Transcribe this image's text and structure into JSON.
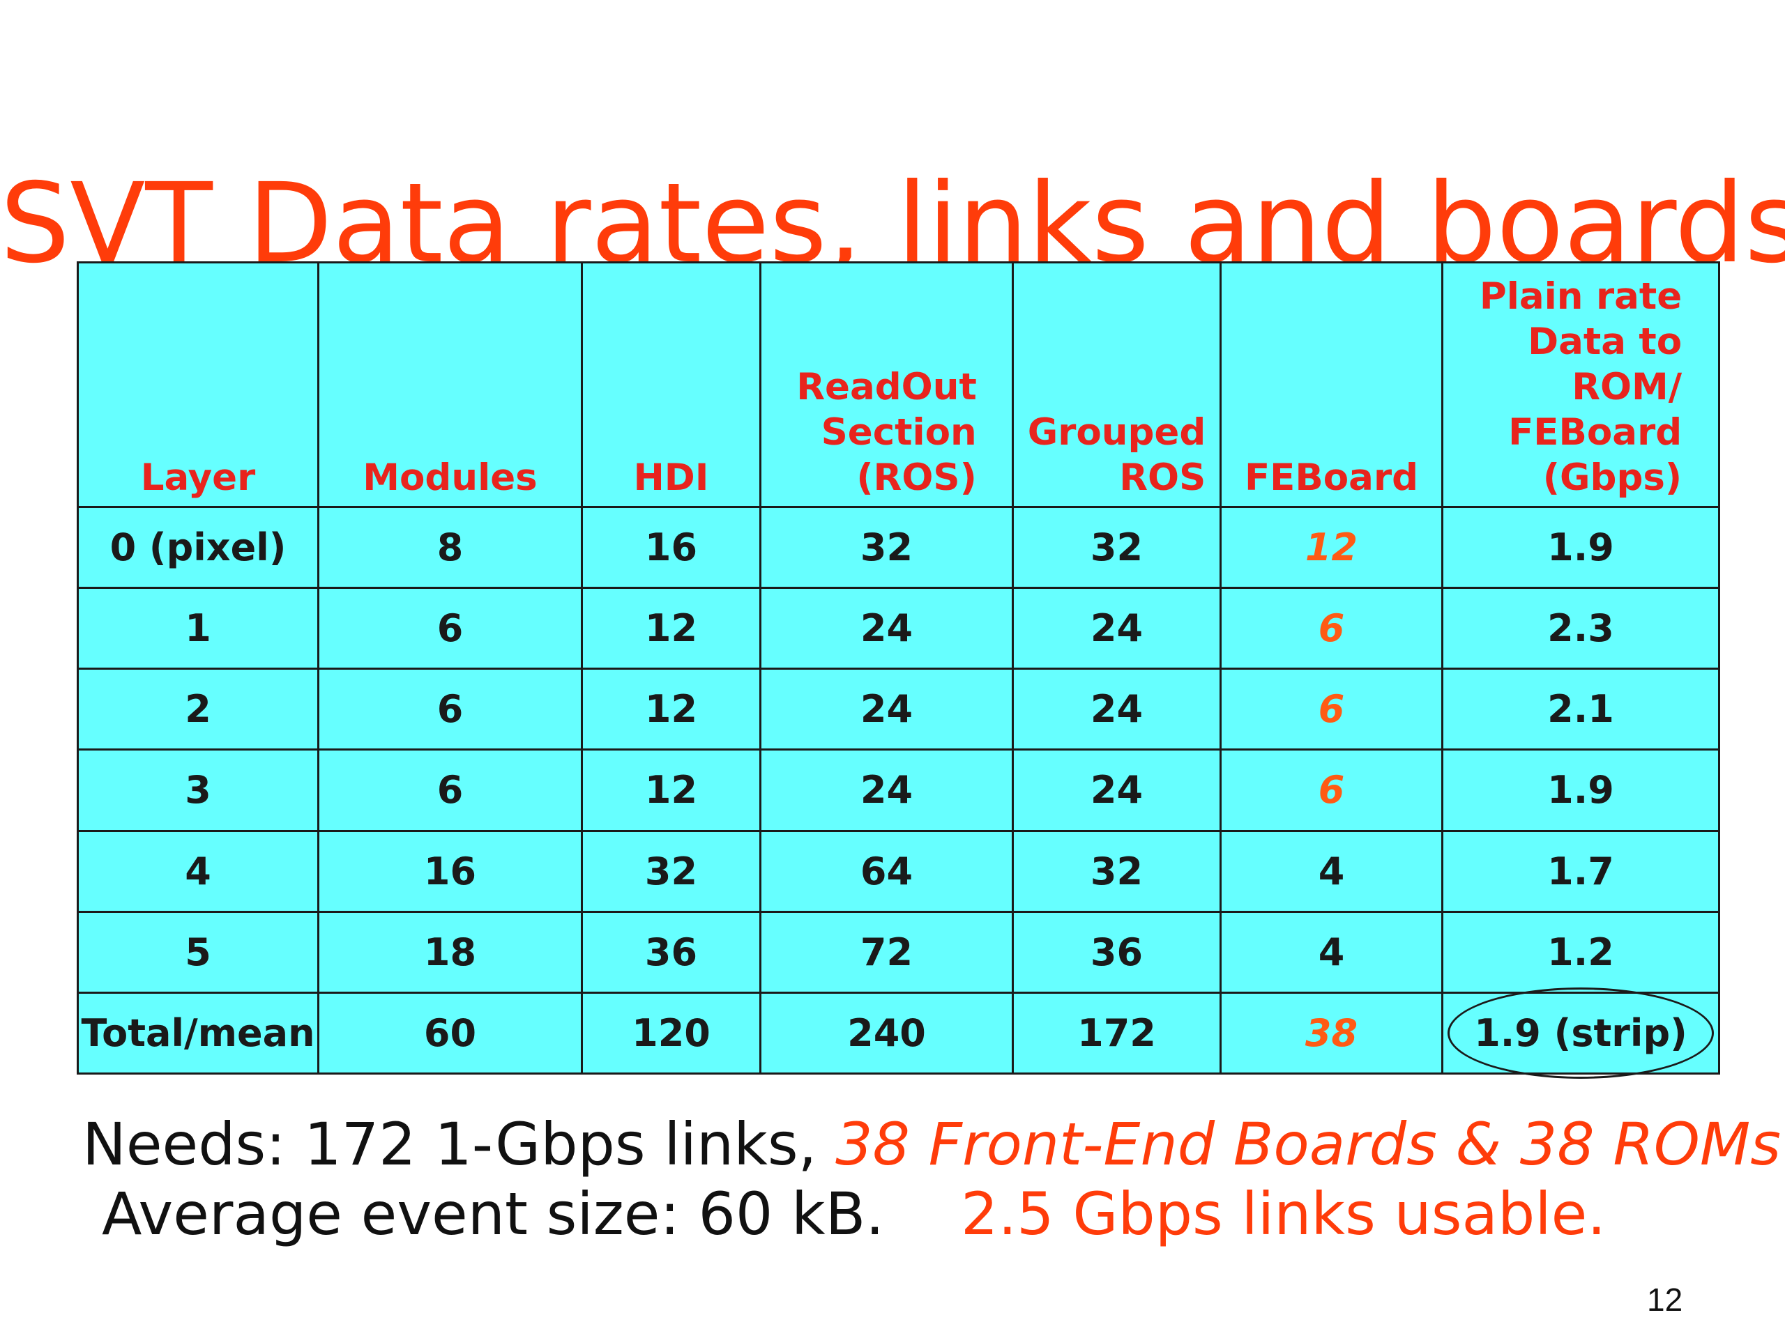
{
  "title": "SVT Data rates, links and boards",
  "table": {
    "headers": [
      {
        "lines": [
          "Layer"
        ]
      },
      {
        "lines": [
          "Modules"
        ]
      },
      {
        "lines": [
          "HDI"
        ]
      },
      {
        "lines": [
          "ReadOut",
          "Section",
          "(ROS)"
        ]
      },
      {
        "lines": [
          "Grouped",
          "ROS"
        ]
      },
      {
        "lines": [
          "FEBoard"
        ]
      },
      {
        "lines": [
          "Plain rate",
          "Data to",
          "ROM/",
          "FEBoard",
          "(Gbps)"
        ]
      }
    ],
    "rows": [
      [
        "0 (pixel)",
        "8",
        "16",
        "32",
        "32",
        "12",
        "1.9"
      ],
      [
        "1",
        "6",
        "12",
        "24",
        "24",
        "6",
        "2.3"
      ],
      [
        "2",
        "6",
        "12",
        "24",
        "24",
        "6",
        "2.1"
      ],
      [
        "3",
        "6",
        "12",
        "24",
        "24",
        "6",
        "1.9"
      ],
      [
        "4",
        "16",
        "32",
        "64",
        "32",
        "4",
        "1.7"
      ],
      [
        "5",
        "18",
        "36",
        "72",
        "36",
        "4",
        "1.2"
      ],
      [
        "Total/mean",
        "60",
        "120",
        "240",
        "172",
        "38",
        "1.9 (strip)"
      ]
    ],
    "feboard_highlight_rows": [
      0,
      1,
      2,
      3,
      6
    ],
    "circled_cell": {
      "row": 6,
      "col": 6
    }
  },
  "footer": {
    "line1_black": "Needs: 172  1-Gbps links, ",
    "line1_red": "38 Front-End Boards & 38 ROMs",
    "line2_black": "Average event size: 60 kB.",
    "line2_red": "2.5 Gbps links usable."
  },
  "page_number": "12",
  "colors": {
    "title": "#ff3c0a",
    "header_text": "#e8241d",
    "table_bg": "#66ffff",
    "feboard_highlight": "#ff5a14"
  }
}
